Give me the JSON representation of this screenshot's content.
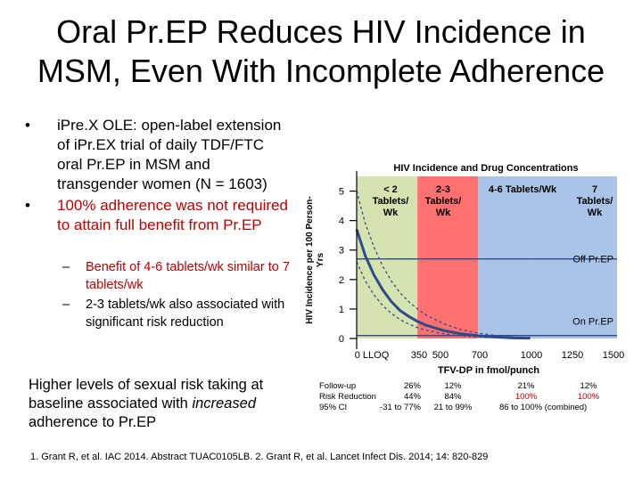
{
  "title_line1": "Oral Pr.EP Reduces HIV Incidence in",
  "title_line2": "MSM, Even With Incomplete Adherence",
  "bullets": [
    {
      "dot": "•",
      "text": "iPre.X OLE: open-label extension of iPr.EX trial of daily TDF/FTC oral Pr.EP in MSM and transgender women (N = 1603)",
      "red": false
    },
    {
      "dot": "•",
      "text": "100% adherence was not required to attain full benefit from Pr.EP",
      "red": true
    }
  ],
  "sub_bullets": [
    {
      "dash": "–",
      "text": "Benefit of 4-6 tablets/wk similar to 7 tablets/wk",
      "red": true
    },
    {
      "dash": "–",
      "text": "2-3 tablets/wk also associated with significant risk reduction",
      "red": false
    }
  ],
  "note": {
    "pre": "Higher levels of sexual risk taking at baseline associated with ",
    "em": "increased",
    "post": " adherence to Pr.EP"
  },
  "stats": {
    "row_labels": [
      "Follow-up",
      "Risk Reduction",
      "95% CI"
    ],
    "col1": [
      "26%",
      "44%",
      "-31 to 77%"
    ],
    "col2": [
      "12%",
      "84%",
      "21 to 99%"
    ],
    "col3": [
      "21%",
      "100%",
      "86 to 100% (combined)"
    ],
    "col4": [
      "12%",
      "100%",
      ""
    ]
  },
  "reference": "1. Grant R, et al. IAC 2014. Abstract TUAC0105LB. 2. Grant R, et al. Lancet Infect Dis. 2014; 14: 820-829",
  "chart_data": {
    "type": "line",
    "title": "HIV Incidence and Drug Concentrations",
    "xlabel": "TFV-DP in fmol/punch",
    "ylabel": "HIV Incidence per 100 Person-Yrs",
    "ylim": [
      0,
      5.5
    ],
    "yticks": [
      0,
      1,
      2,
      3,
      4,
      5
    ],
    "xticks": [
      {
        "label": "0 LLOQ",
        "value": 0
      },
      {
        "label": "350",
        "value": 350
      },
      {
        "label": "500",
        "value": 500
      },
      {
        "label": "700",
        "value": 700
      },
      {
        "label": "1000",
        "value": 1000
      },
      {
        "label": "1250",
        "value": 1250
      },
      {
        "label": "1500",
        "value": 1500
      }
    ],
    "bands": [
      {
        "label": "< 2 Tablets/ Wk",
        "from": 0,
        "to": 350,
        "color": "#d4e3b0"
      },
      {
        "label": "2-3 Tablets/ Wk",
        "from": 350,
        "to": 700,
        "color": "#ff7070"
      },
      {
        "label": "4-6 Tablets/Wk",
        "from": 700,
        "to": 1000,
        "color": "#a9c4e6"
      },
      {
        "label": "7 Tablets/ Wk",
        "from": 1000,
        "to": 1500,
        "color": "#a9c4e6"
      }
    ],
    "reference_lines": [
      {
        "label": "Off Pr.EP",
        "y": 2.7
      },
      {
        "label": "On Pr.EP",
        "y": 0.1
      }
    ],
    "series": [
      {
        "name": "",
        "x": [
          0,
          50,
          100,
          150,
          200,
          250,
          300,
          350,
          400,
          500,
          600,
          700,
          800,
          900,
          1000
        ],
        "y": [
          5.0,
          3.9,
          3.1,
          2.45,
          1.95,
          1.55,
          1.25,
          1.0,
          0.8,
          0.5,
          0.3,
          0.18,
          0.1,
          0.05,
          0.02
        ]
      },
      {
        "name": "",
        "x": [
          0,
          50,
          100,
          150,
          200,
          250,
          300,
          350,
          400,
          500,
          600,
          700,
          800,
          900,
          1000
        ],
        "y": [
          3.7,
          2.8,
          2.15,
          1.65,
          1.25,
          0.95,
          0.75,
          0.58,
          0.45,
          0.27,
          0.16,
          0.09,
          0.05,
          0.02,
          0.01
        ]
      },
      {
        "name": "",
        "x": [
          0,
          50,
          100,
          150,
          200,
          250,
          300,
          350,
          400,
          500,
          600,
          700,
          800,
          900,
          1000
        ],
        "y": [
          2.6,
          1.95,
          1.48,
          1.12,
          0.85,
          0.64,
          0.49,
          0.37,
          0.28,
          0.16,
          0.09,
          0.05,
          0.03,
          0.01,
          0.0
        ]
      }
    ]
  }
}
